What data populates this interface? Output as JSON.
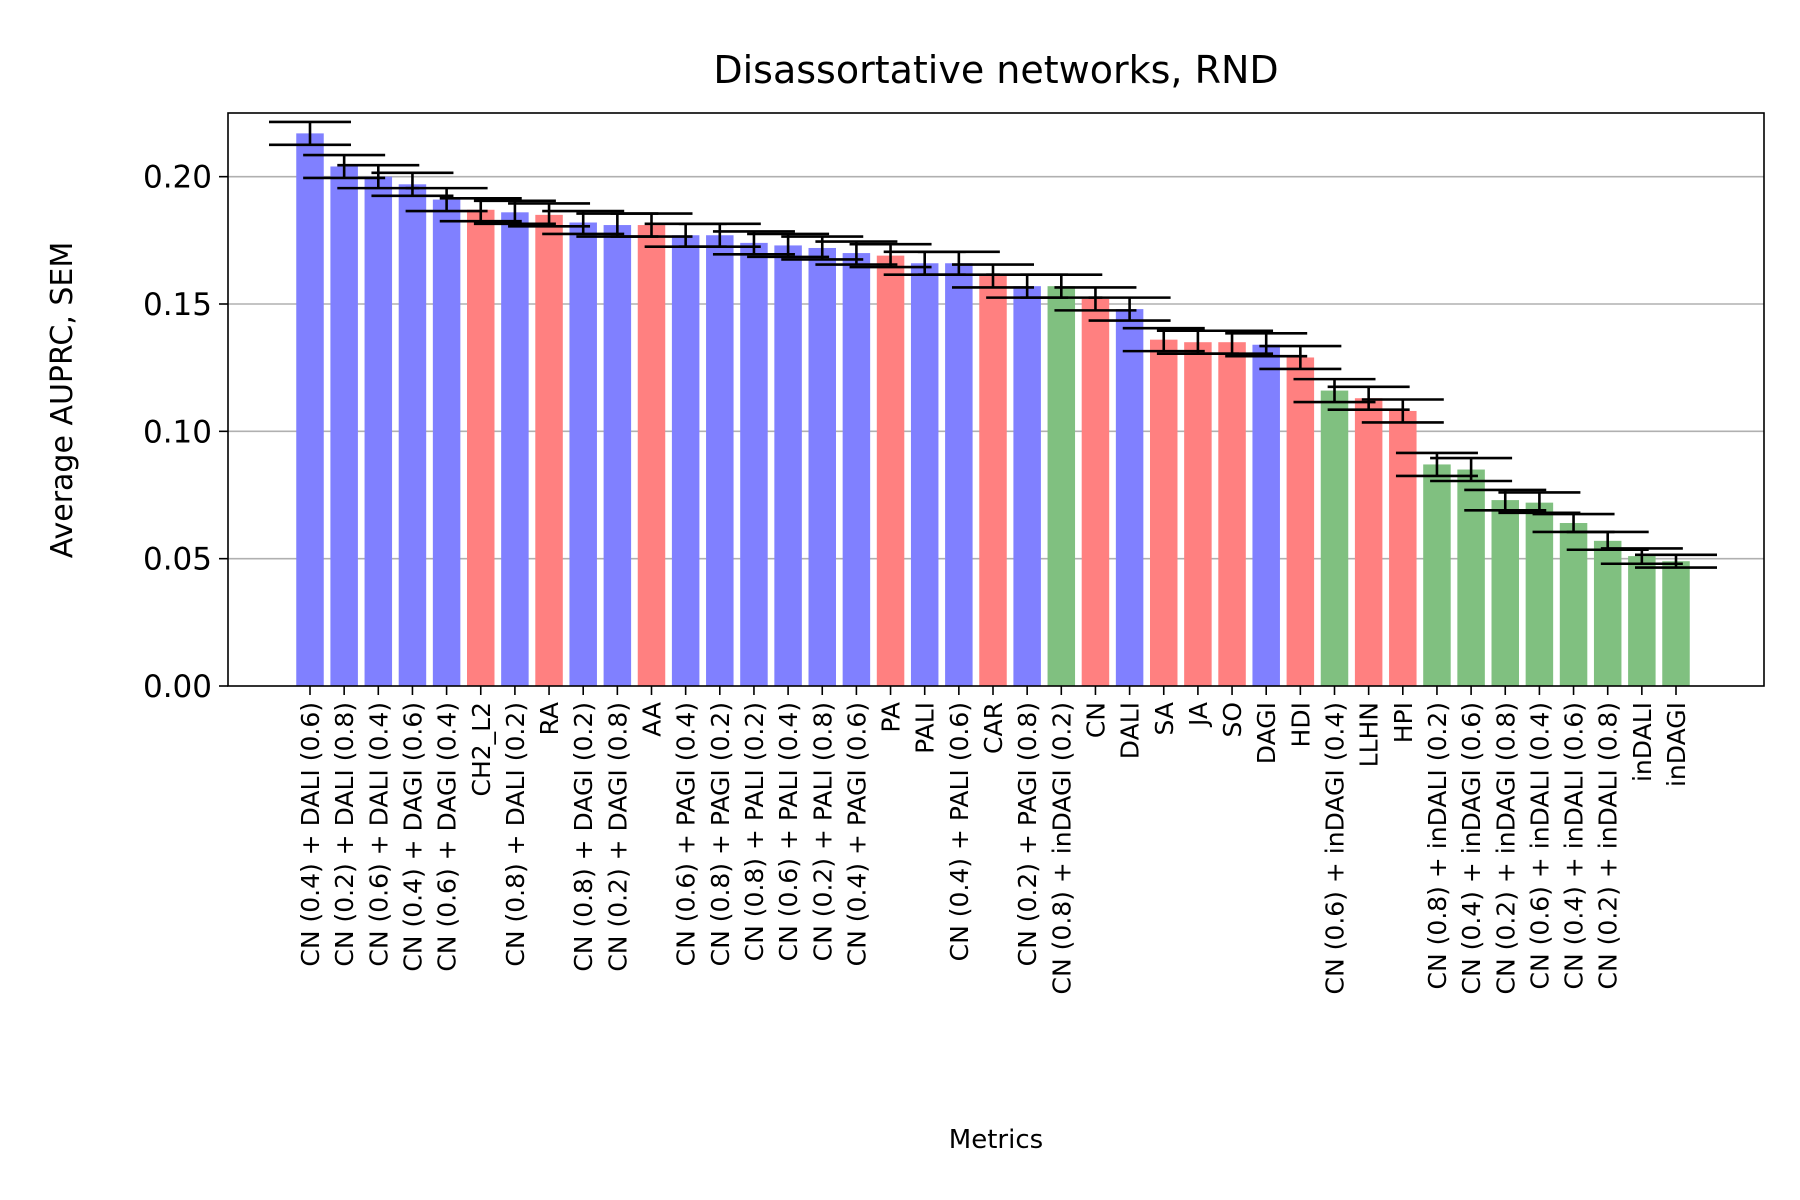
{
  "chart_data": {
    "type": "bar",
    "title": "Disassortative networks, RND",
    "xlabel": "Metrics",
    "ylabel": "Average AUPRC, SEM",
    "ylim": [
      0,
      0.225
    ],
    "yticks": [
      "0.00",
      "0.05",
      "0.10",
      "0.15",
      "0.20"
    ],
    "ytick_values": [
      0,
      0.05,
      0.1,
      0.15,
      0.2
    ],
    "grid": "horizontal",
    "colors": {
      "blue": "#8080ff",
      "red": "#ff8080",
      "green": "#80c080"
    },
    "bars": [
      {
        "label": "CN (0.4) + DALI (0.6)",
        "value": 0.217,
        "err": 0.0045,
        "color": "blue"
      },
      {
        "label": "CN (0.2) + DALI (0.8)",
        "value": 0.204,
        "err": 0.0045,
        "color": "blue"
      },
      {
        "label": "CN (0.6) + DALI (0.4)",
        "value": 0.2,
        "err": 0.0045,
        "color": "blue"
      },
      {
        "label": "CN (0.4) + DAGI (0.6)",
        "value": 0.197,
        "err": 0.0045,
        "color": "blue"
      },
      {
        "label": "CN (0.6) + DAGI (0.4)",
        "value": 0.191,
        "err": 0.0045,
        "color": "blue"
      },
      {
        "label": "CH2_L2",
        "value": 0.187,
        "err": 0.0045,
        "color": "red"
      },
      {
        "label": "CN (0.8) + DALI (0.2)",
        "value": 0.186,
        "err": 0.0045,
        "color": "blue"
      },
      {
        "label": "RA",
        "value": 0.185,
        "err": 0.0045,
        "color": "red"
      },
      {
        "label": "CN (0.8) + DAGI (0.2)",
        "value": 0.182,
        "err": 0.0045,
        "color": "blue"
      },
      {
        "label": "CN (0.2) + DAGI (0.8)",
        "value": 0.181,
        "err": 0.0045,
        "color": "blue"
      },
      {
        "label": "AA",
        "value": 0.181,
        "err": 0.0045,
        "color": "red"
      },
      {
        "label": "CN (0.6) + PAGI (0.4)",
        "value": 0.177,
        "err": 0.0045,
        "color": "blue"
      },
      {
        "label": "CN (0.8) + PAGI (0.2)",
        "value": 0.177,
        "err": 0.0045,
        "color": "blue"
      },
      {
        "label": "CN (0.8) + PALI (0.2)",
        "value": 0.174,
        "err": 0.0045,
        "color": "blue"
      },
      {
        "label": "CN (0.6) + PALI (0.4)",
        "value": 0.173,
        "err": 0.0045,
        "color": "blue"
      },
      {
        "label": "CN (0.2) + PALI (0.8)",
        "value": 0.172,
        "err": 0.0045,
        "color": "blue"
      },
      {
        "label": "CN (0.4) + PAGI (0.6)",
        "value": 0.17,
        "err": 0.0045,
        "color": "blue"
      },
      {
        "label": "PA",
        "value": 0.169,
        "err": 0.0045,
        "color": "red"
      },
      {
        "label": "PALI",
        "value": 0.166,
        "err": 0.0045,
        "color": "blue"
      },
      {
        "label": "CN (0.4) + PALI (0.6)",
        "value": 0.166,
        "err": 0.0045,
        "color": "blue"
      },
      {
        "label": "CAR",
        "value": 0.161,
        "err": 0.0045,
        "color": "red"
      },
      {
        "label": "CN (0.2) + PAGI (0.8)",
        "value": 0.157,
        "err": 0.0045,
        "color": "blue"
      },
      {
        "label": "CN (0.8) + inDAGI (0.2)",
        "value": 0.157,
        "err": 0.0045,
        "color": "green"
      },
      {
        "label": "CN",
        "value": 0.152,
        "err": 0.0045,
        "color": "red"
      },
      {
        "label": "DALI",
        "value": 0.148,
        "err": 0.0045,
        "color": "blue"
      },
      {
        "label": "SA",
        "value": 0.136,
        "err": 0.0045,
        "color": "red"
      },
      {
        "label": "JA",
        "value": 0.135,
        "err": 0.0045,
        "color": "red"
      },
      {
        "label": "SO",
        "value": 0.135,
        "err": 0.0045,
        "color": "red"
      },
      {
        "label": "DAGI",
        "value": 0.134,
        "err": 0.0045,
        "color": "blue"
      },
      {
        "label": "HDI",
        "value": 0.129,
        "err": 0.0045,
        "color": "red"
      },
      {
        "label": "CN (0.6) + inDAGI (0.4)",
        "value": 0.116,
        "err": 0.0045,
        "color": "green"
      },
      {
        "label": "LLHN",
        "value": 0.113,
        "err": 0.0045,
        "color": "red"
      },
      {
        "label": "HPI",
        "value": 0.108,
        "err": 0.0045,
        "color": "red"
      },
      {
        "label": "CN (0.8) + inDALI (0.2)",
        "value": 0.087,
        "err": 0.0045,
        "color": "green"
      },
      {
        "label": "CN (0.4) + inDAGI (0.6)",
        "value": 0.085,
        "err": 0.0045,
        "color": "green"
      },
      {
        "label": "CN (0.2) + inDAGI (0.8)",
        "value": 0.073,
        "err": 0.004,
        "color": "green"
      },
      {
        "label": "CN (0.6) + inDALI (0.4)",
        "value": 0.072,
        "err": 0.004,
        "color": "green"
      },
      {
        "label": "CN (0.4) + inDALI (0.6)",
        "value": 0.064,
        "err": 0.0035,
        "color": "green"
      },
      {
        "label": "CN (0.2) + inDALI (0.8)",
        "value": 0.057,
        "err": 0.0035,
        "color": "green"
      },
      {
        "label": "inDALI",
        "value": 0.051,
        "err": 0.003,
        "color": "green"
      },
      {
        "label": "inDAGI",
        "value": 0.049,
        "err": 0.0025,
        "color": "green"
      }
    ]
  }
}
